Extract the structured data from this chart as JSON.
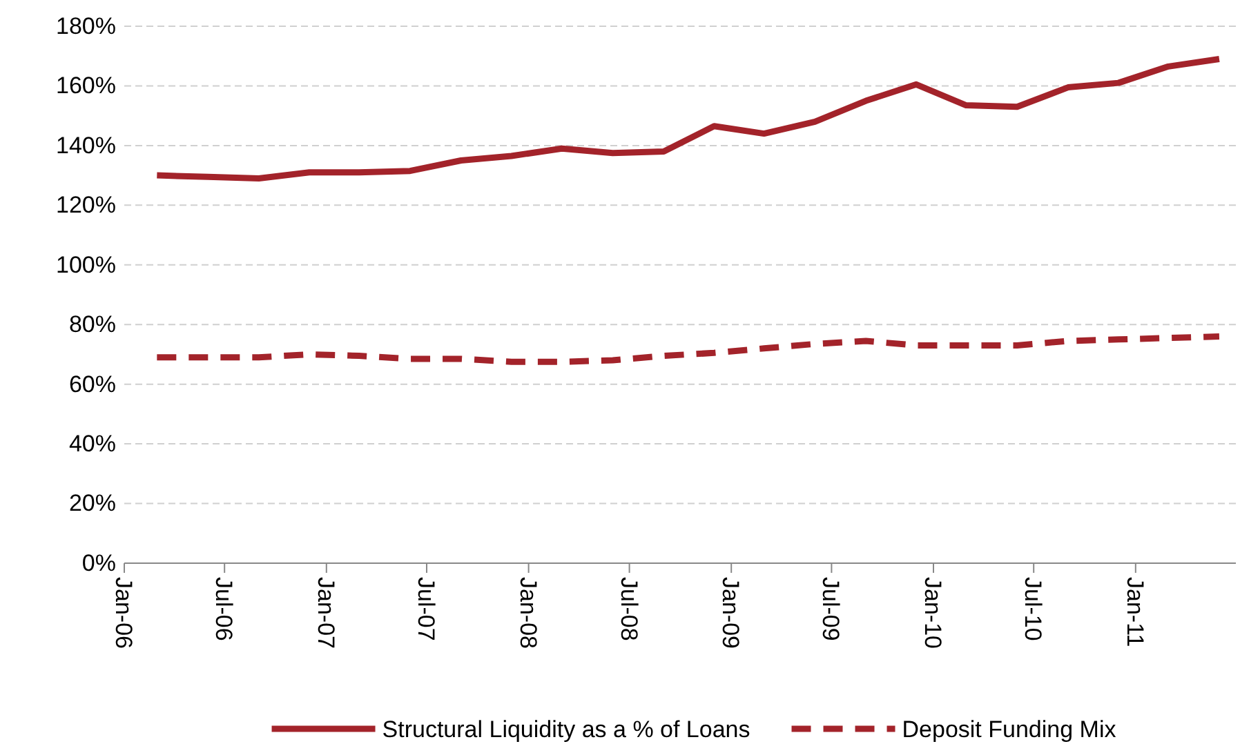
{
  "chart_data": {
    "type": "line",
    "x": [
      "2006-03",
      "2006-06",
      "2006-09",
      "2006-12",
      "2007-03",
      "2007-06",
      "2007-09",
      "2007-12",
      "2008-03",
      "2008-06",
      "2008-09",
      "2008-12",
      "2009-03",
      "2009-06",
      "2009-09",
      "2009-12",
      "2010-03",
      "2010-06",
      "2010-09",
      "2010-12",
      "2011-03",
      "2011-06"
    ],
    "series": [
      {
        "name": "Structural Liquidity as a % of Loans",
        "color": "#a3232a",
        "line_style": "solid",
        "values": [
          130,
          129.5,
          129,
          131,
          131,
          131.5,
          135,
          136.5,
          139,
          137.5,
          138,
          146.5,
          144,
          148,
          155,
          160.5,
          153.5,
          153,
          159.5,
          161,
          166.5,
          169
        ]
      },
      {
        "name": "Deposit Funding Mix",
        "color": "#a3232a",
        "line_style": "dashed",
        "values": [
          69,
          69,
          69,
          70,
          69.5,
          68.5,
          68.5,
          67.5,
          67.5,
          68,
          69.5,
          70.5,
          72,
          73.5,
          74.5,
          73,
          73,
          73,
          74.5,
          75,
          75.5,
          76
        ]
      }
    ],
    "xlim": [
      "2006-01",
      "2011-07"
    ],
    "xticks": [
      {
        "value": "2006-01",
        "label": "Jan-06"
      },
      {
        "value": "2006-07",
        "label": "Jul-06"
      },
      {
        "value": "2007-01",
        "label": "Jan-07"
      },
      {
        "value": "2007-07",
        "label": "Jul-07"
      },
      {
        "value": "2008-01",
        "label": "Jan-08"
      },
      {
        "value": "2008-07",
        "label": "Jul-08"
      },
      {
        "value": "2009-01",
        "label": "Jan-09"
      },
      {
        "value": "2009-07",
        "label": "Jul-09"
      },
      {
        "value": "2010-01",
        "label": "Jan-10"
      },
      {
        "value": "2010-07",
        "label": "Jul-10"
      },
      {
        "value": "2011-01",
        "label": "Jan-11"
      }
    ],
    "ylim": [
      0,
      180
    ],
    "yticks": [
      {
        "value": 0,
        "label": "0%"
      },
      {
        "value": 20,
        "label": "20%"
      },
      {
        "value": 40,
        "label": "40%"
      },
      {
        "value": 60,
        "label": "60%"
      },
      {
        "value": 80,
        "label": "80%"
      },
      {
        "value": 100,
        "label": "100%"
      },
      {
        "value": 120,
        "label": "120%"
      },
      {
        "value": 140,
        "label": "140%"
      },
      {
        "value": 160,
        "label": "160%"
      },
      {
        "value": 180,
        "label": "180%"
      }
    ],
    "grid": "y",
    "legend": "bottom",
    "marker": "none"
  }
}
